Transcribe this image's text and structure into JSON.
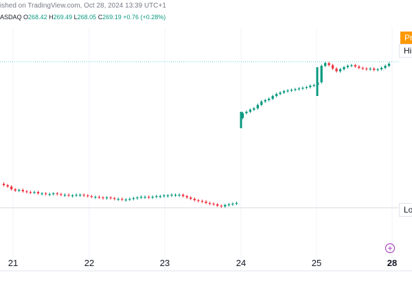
{
  "header": {
    "published": "ished on TradingView.com, Oct 28, 2024 13:39 UTC+1",
    "symbol": "ASDAQ",
    "open_label": "O",
    "open": "268.42",
    "high_label": "H",
    "high": "269.49",
    "low_label": "L",
    "low": "268.05",
    "close_label": "C",
    "close": "269.19",
    "change": "+0.76 (+0.28%)"
  },
  "price_scale": {
    "pre_tag": "Pr",
    "high_tag": "Hig",
    "low_tag": "Lo"
  },
  "colors": {
    "up": "#089981",
    "down": "#f23645",
    "grid": "#f0f3fa",
    "level": "#4dd0e1"
  },
  "chart_data": {
    "type": "candlestick",
    "x_labels": [
      "21",
      "22",
      "23",
      "24",
      "25",
      "28"
    ],
    "level_lines": [
      "High",
      "Low"
    ]
  },
  "icons": {
    "add": "plus-circle-icon"
  }
}
